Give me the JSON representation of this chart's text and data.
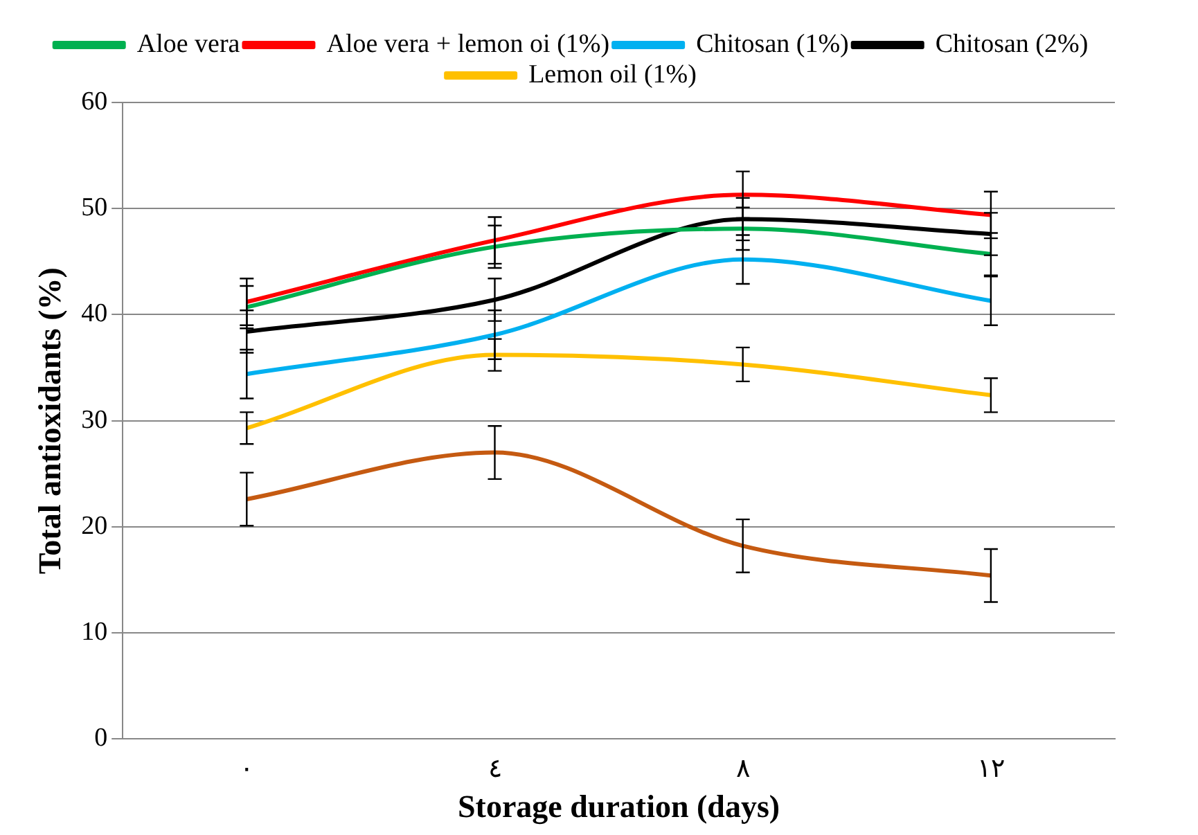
{
  "chart_data": {
    "type": "line",
    "xlabel": "Storage duration (days)",
    "ylabel": "Total antioxidants (%)",
    "categories": [
      "٠",
      "٤",
      "٨",
      "١٢"
    ],
    "series": [
      {
        "name": "Aloe vera",
        "color": "#00b050",
        "values": [
          40.7,
          46.4,
          48.1,
          45.7
        ],
        "errors": [
          2,
          2,
          2,
          2
        ]
      },
      {
        "name": "Aloe vera + lemon oi (1%)",
        "color": "#ff0000",
        "values": [
          41.2,
          47.0,
          51.3,
          49.4
        ],
        "errors": [
          2.2,
          2.2,
          2.2,
          2.2
        ]
      },
      {
        "name": "Chitosan (1%)",
        "color": "#00b0f0",
        "values": [
          34.4,
          38.1,
          45.2,
          41.3
        ],
        "errors": [
          2.3,
          2.3,
          2.3,
          2.3
        ]
      },
      {
        "name": "Chitosan (2%)",
        "color": "#000000",
        "values": [
          38.4,
          41.4,
          49.0,
          47.6
        ],
        "errors": [
          2,
          2,
          2,
          2
        ]
      },
      {
        "name": "Lemon oil (1%)",
        "color": "#ffc000",
        "values": [
          29.3,
          36.2,
          35.3,
          32.4
        ],
        "errors": [
          1.5,
          1.5,
          1.6,
          1.6
        ]
      },
      {
        "color": "#c55a11",
        "values": [
          22.6,
          27.0,
          18.2,
          15.4
        ],
        "errors": [
          2.5,
          2.5,
          2.5,
          2.5
        ]
      }
    ],
    "ylim": [
      0,
      60
    ],
    "yticks": [
      0,
      10,
      20,
      30,
      40,
      50,
      60
    ],
    "grid": "y",
    "legend": "top",
    "marker": "none",
    "line_style": "solid"
  }
}
